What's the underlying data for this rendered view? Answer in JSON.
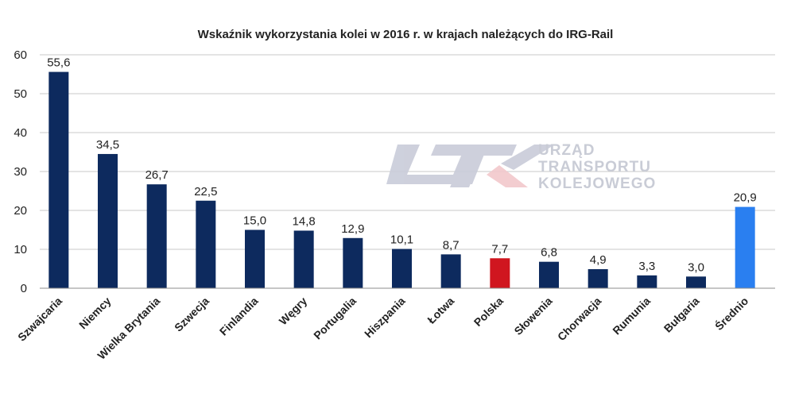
{
  "chart_data": {
    "type": "bar",
    "title": "Wskaźnik wykorzystania kolei w 2016 r. w krajach należących do IRG-Rail",
    "xlabel": "",
    "ylabel": "",
    "ylim": [
      0,
      60
    ],
    "yticks": [
      0,
      10,
      20,
      30,
      40,
      50,
      60
    ],
    "grid": true,
    "legend": "none",
    "categories": [
      "Szwajcaria",
      "Niemcy",
      "Wielka Brytania",
      "Szwecja",
      "Finlandia",
      "Węgry",
      "Portugalia",
      "Hiszpania",
      "Łotwa",
      "Polska",
      "Słowenia",
      "Chorwacja",
      "Rumunia",
      "Bułgaria",
      "Średnio"
    ],
    "values": [
      55.6,
      34.5,
      26.7,
      22.5,
      15.0,
      14.8,
      12.9,
      10.1,
      8.7,
      7.7,
      6.8,
      4.9,
      3.3,
      3.0,
      20.9
    ],
    "value_labels": [
      "55,6",
      "34,5",
      "26,7",
      "22,5",
      "15,0",
      "14,8",
      "12,9",
      "10,1",
      "8,7",
      "7,7",
      "6,8",
      "4,9",
      "3,3",
      "3,0",
      "20,9"
    ],
    "bar_colors": [
      "#0d2a5e",
      "#0d2a5e",
      "#0d2a5e",
      "#0d2a5e",
      "#0d2a5e",
      "#0d2a5e",
      "#0d2a5e",
      "#0d2a5e",
      "#0d2a5e",
      "#d0161f",
      "#0d2a5e",
      "#0d2a5e",
      "#0d2a5e",
      "#0d2a5e",
      "#2a7ff0"
    ]
  },
  "watermark": {
    "lines": [
      "URZĄD",
      "TRANSPORTU",
      "KOLEJOWEGO"
    ],
    "colors": {
      "blue": "#c9ccd9",
      "red": "#f2c8cc"
    }
  }
}
